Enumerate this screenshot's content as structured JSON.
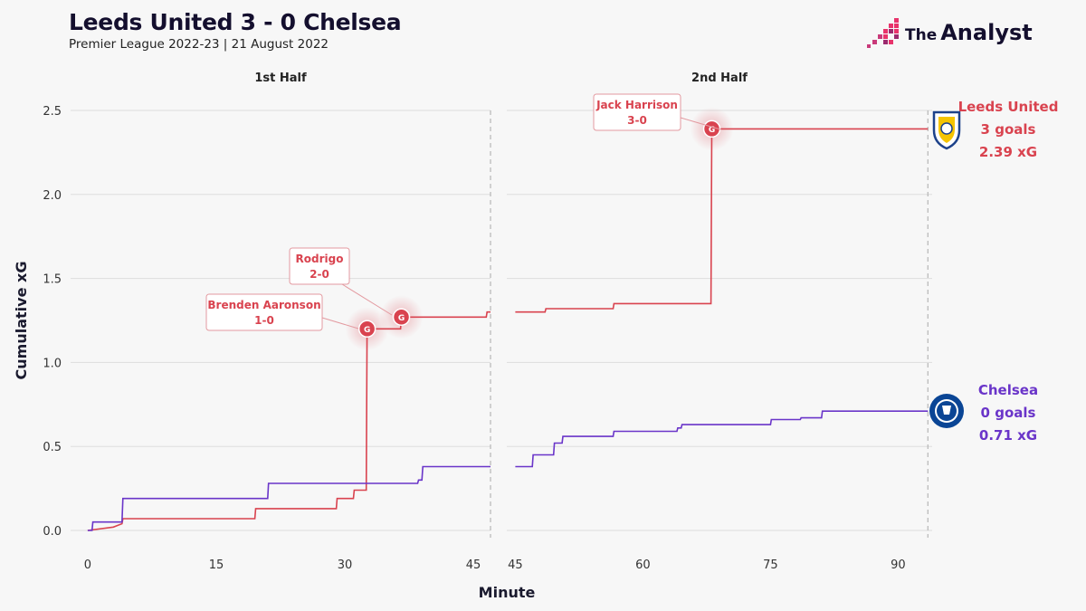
{
  "header": {
    "title": "Leeds United 3 - 0 Chelsea",
    "subtitle": "Premier League 2022-23 | 21 August 2022",
    "brand_small": "The",
    "brand_large": "Analyst"
  },
  "colors": {
    "leeds": "#d9434f",
    "chelsea": "#6a35c9",
    "grid": "#dddddd",
    "background": "#f7f7f7"
  },
  "icons": [
    "leeds-crest-icon",
    "chelsea-crest-icon",
    "analyst-logo-icon"
  ],
  "chart_data": {
    "type": "line",
    "step": true,
    "xlabel": "Minute",
    "ylabel": "Cumulative xG",
    "ylim": [
      0,
      2.5
    ],
    "yticks": [
      "0.0",
      "0.5",
      "1.0",
      "1.5",
      "2.0",
      "2.5"
    ],
    "grid": true,
    "panels": [
      {
        "title": "1st Half",
        "xlim": [
          -2,
          47
        ],
        "xticks": [
          "0",
          "15",
          "30",
          "45"
        ],
        "end_line": 47,
        "series": [
          {
            "name": "Leeds United",
            "color": "#d9434f",
            "points": [
              [
                0,
                0
              ],
              [
                3,
                0.02
              ],
              [
                4,
                0.04
              ],
              [
                4.1,
                0.07
              ],
              [
                19.5,
                0.07
              ],
              [
                19.6,
                0.13
              ],
              [
                29,
                0.13
              ],
              [
                29.1,
                0.19
              ],
              [
                31,
                0.19
              ],
              [
                31.1,
                0.24
              ],
              [
                32.5,
                0.24
              ],
              [
                32.6,
                1.2
              ],
              [
                36.5,
                1.2
              ],
              [
                36.6,
                1.27
              ],
              [
                46.5,
                1.27
              ],
              [
                46.6,
                1.3
              ],
              [
                47,
                1.3
              ]
            ]
          },
          {
            "name": "Chelsea",
            "color": "#6a35c9",
            "points": [
              [
                0,
                0
              ],
              [
                0.5,
                0
              ],
              [
                0.6,
                0.05
              ],
              [
                4,
                0.05
              ],
              [
                4.1,
                0.19
              ],
              [
                21,
                0.19
              ],
              [
                21.1,
                0.28
              ],
              [
                38.5,
                0.28
              ],
              [
                38.6,
                0.3
              ],
              [
                39,
                0.3
              ],
              [
                39.1,
                0.38
              ],
              [
                47,
                0.38
              ]
            ]
          }
        ],
        "goals": [
          {
            "minute": 32.6,
            "xg": 1.2,
            "scorer": "Brenden Aaronson",
            "score": "1-0"
          },
          {
            "minute": 36.6,
            "xg": 1.27,
            "scorer": "Rodrigo",
            "score": "2-0"
          }
        ]
      },
      {
        "title": "2nd Half",
        "xlim": [
          44,
          94
        ],
        "xticks": [
          "45",
          "60",
          "75",
          "90"
        ],
        "end_line": 93.5,
        "series": [
          {
            "name": "Leeds United",
            "color": "#d9434f",
            "points": [
              [
                45,
                1.3
              ],
              [
                48.5,
                1.3
              ],
              [
                48.6,
                1.32
              ],
              [
                56.5,
                1.32
              ],
              [
                56.6,
                1.35
              ],
              [
                68,
                1.35
              ],
              [
                68.1,
                2.39
              ],
              [
                93.5,
                2.39
              ]
            ]
          },
          {
            "name": "Chelsea",
            "color": "#6a35c9",
            "points": [
              [
                45,
                0.38
              ],
              [
                47,
                0.38
              ],
              [
                47.1,
                0.45
              ],
              [
                49.5,
                0.45
              ],
              [
                49.6,
                0.52
              ],
              [
                50.5,
                0.52
              ],
              [
                50.6,
                0.56
              ],
              [
                56.5,
                0.56
              ],
              [
                56.6,
                0.59
              ],
              [
                64,
                0.59
              ],
              [
                64.1,
                0.61
              ],
              [
                64.5,
                0.61
              ],
              [
                64.6,
                0.63
              ],
              [
                75,
                0.63
              ],
              [
                75.1,
                0.66
              ],
              [
                78.5,
                0.66
              ],
              [
                78.6,
                0.67
              ],
              [
                81,
                0.67
              ],
              [
                81.1,
                0.71
              ],
              [
                93.5,
                0.71
              ]
            ]
          }
        ],
        "goals": [
          {
            "minute": 68.1,
            "xg": 2.39,
            "scorer": "Jack Harrison",
            "score": "3-0"
          }
        ]
      }
    ],
    "goal_marker": "G",
    "team_summaries": [
      {
        "team": "Leeds United",
        "goals": "3 goals",
        "xg": "2.39 xG",
        "color": "#d9434f"
      },
      {
        "team": "Chelsea",
        "goals": "0 goals",
        "xg": "0.71 xG",
        "color": "#6a35c9"
      }
    ]
  }
}
